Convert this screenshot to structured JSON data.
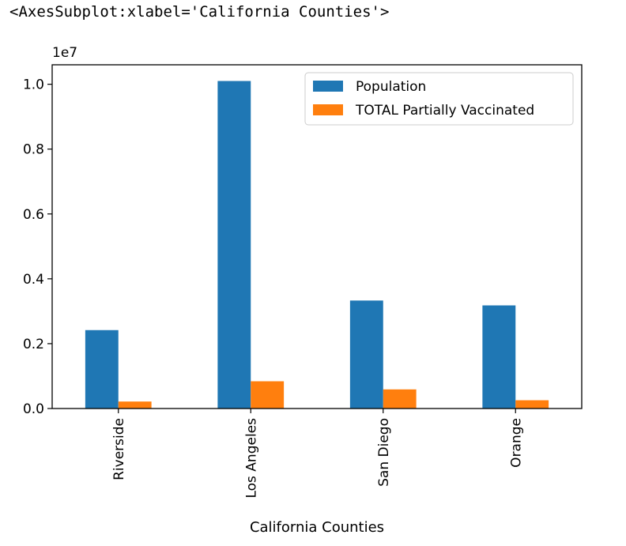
{
  "output_text": "<AxesSubplot:xlabel='California Counties'>",
  "chart_data": {
    "type": "bar",
    "categories": [
      "Riverside",
      "Los Angeles",
      "San Diego",
      "Orange"
    ],
    "series": [
      {
        "name": "Population",
        "color": "#1f77b4",
        "values": [
          2418000,
          10100000,
          3330000,
          3180000
        ]
      },
      {
        "name": "TOTAL Partially Vaccinated",
        "color": "#ff7f0e",
        "values": [
          215000,
          840000,
          590000,
          255000
        ]
      }
    ],
    "xlabel": "California Counties",
    "ylabel": "",
    "y_scale_note": "1e7",
    "ylim": [
      0,
      10600000
    ],
    "yticks": [
      0,
      2000000,
      4000000,
      6000000,
      8000000,
      10000000
    ],
    "ytick_labels": [
      "0.0",
      "0.2",
      "0.4",
      "0.6",
      "0.8",
      "1.0"
    ],
    "legend_position": "upper right",
    "grid": false
  }
}
